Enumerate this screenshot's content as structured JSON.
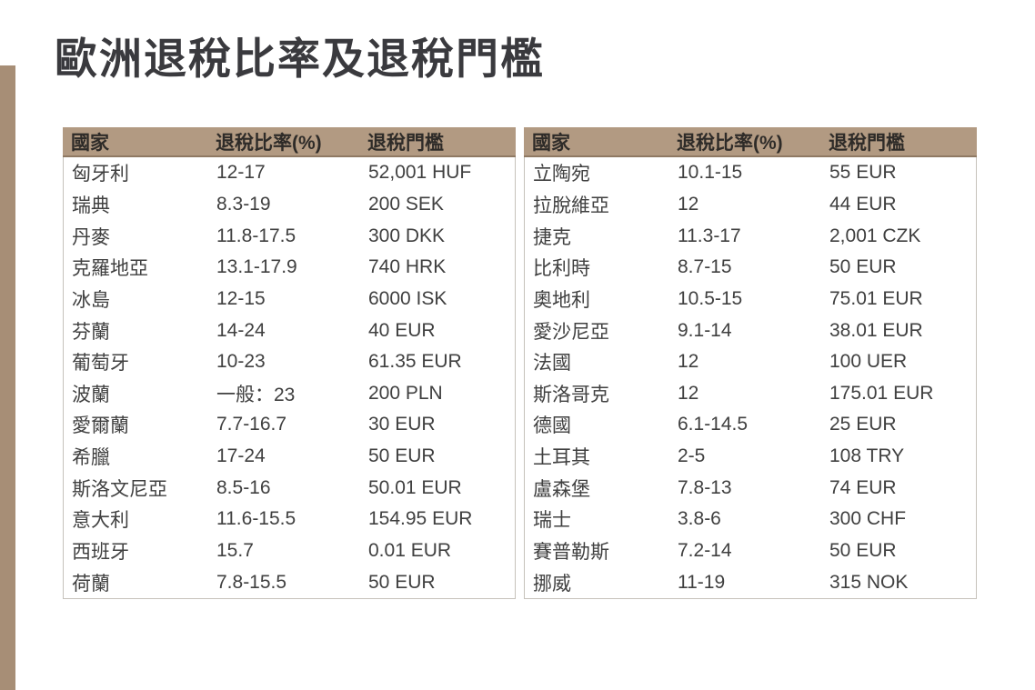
{
  "page": {
    "title": "歐洲退稅比率及退稅門檻",
    "accent_bar_color": "#a78e76",
    "header_bg_color": "#b29a82",
    "title_color": "#3a3a3e"
  },
  "tables": [
    {
      "headers": {
        "country": "國家",
        "rate": "退稅比率(%)",
        "threshold": "退稅門檻"
      },
      "rows": [
        {
          "country": "匈牙利",
          "rate": "12-17",
          "threshold": "52,001 HUF"
        },
        {
          "country": "瑞典",
          "rate": "8.3-19",
          "threshold": "200 SEK"
        },
        {
          "country": "丹麥",
          "rate": "11.8-17.5",
          "threshold": "300 DKK"
        },
        {
          "country": "克羅地亞",
          "rate": "13.1-17.9",
          "threshold": "740 HRK"
        },
        {
          "country": "冰島",
          "rate": "12-15",
          "threshold": "6000 ISK"
        },
        {
          "country": "芬蘭",
          "rate": "14-24",
          "threshold": "40 EUR"
        },
        {
          "country": "葡萄牙",
          "rate": "10-23",
          "threshold": "61.35 EUR"
        },
        {
          "country": "波蘭",
          "rate": "一般：23",
          "threshold": "200 PLN"
        },
        {
          "country": "愛爾蘭",
          "rate": "7.7-16.7",
          "threshold": "30 EUR"
        },
        {
          "country": "希臘",
          "rate": "17-24",
          "threshold": "50 EUR"
        },
        {
          "country": "斯洛文尼亞",
          "rate": "8.5-16",
          "threshold": "50.01 EUR"
        },
        {
          "country": "意大利",
          "rate": "11.6-15.5",
          "threshold": "154.95 EUR"
        },
        {
          "country": "西班牙",
          "rate": "15.7",
          "threshold": "0.01 EUR"
        },
        {
          "country": "荷蘭",
          "rate": "7.8-15.5",
          "threshold": "50 EUR"
        }
      ]
    },
    {
      "headers": {
        "country": "國家",
        "rate": "退稅比率(%)",
        "threshold": "退稅門檻"
      },
      "rows": [
        {
          "country": "立陶宛",
          "rate": "10.1-15",
          "threshold": "55 EUR"
        },
        {
          "country": "拉脫維亞",
          "rate": "12",
          "threshold": "44 EUR"
        },
        {
          "country": "捷克",
          "rate": "11.3-17",
          "threshold": "2,001 CZK"
        },
        {
          "country": "比利時",
          "rate": "8.7-15",
          "threshold": "50 EUR"
        },
        {
          "country": "奧地利",
          "rate": "10.5-15",
          "threshold": "75.01 EUR"
        },
        {
          "country": "愛沙尼亞",
          "rate": "9.1-14",
          "threshold": "38.01 EUR"
        },
        {
          "country": "法國",
          "rate": "12",
          "threshold": "100 UER"
        },
        {
          "country": "斯洛哥克",
          "rate": "12",
          "threshold": "175.01 EUR"
        },
        {
          "country": "德國",
          "rate": "6.1-14.5",
          "threshold": "25 EUR"
        },
        {
          "country": "土耳其",
          "rate": "2-5",
          "threshold": "108 TRY"
        },
        {
          "country": "盧森堡",
          "rate": "7.8-13",
          "threshold": "74 EUR"
        },
        {
          "country": "瑞士",
          "rate": "3.8-6",
          "threshold": "300 CHF"
        },
        {
          "country": "賽普勒斯",
          "rate": "7.2-14",
          "threshold": "50 EUR"
        },
        {
          "country": "挪威",
          "rate": "11-19",
          "threshold": "315 NOK"
        }
      ]
    }
  ]
}
